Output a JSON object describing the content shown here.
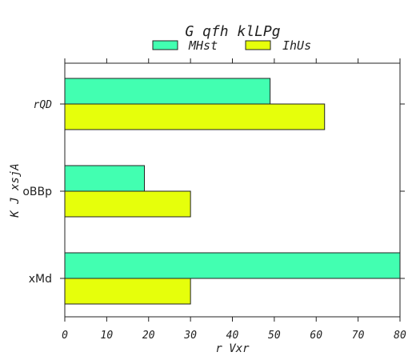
{
  "chart_data": {
    "type": "bar",
    "orientation": "horizontal",
    "title": "G  qfh   klLPg",
    "xlabel": "r Vxr",
    "ylabel": "K J xsjA",
    "categories": [
      "rQD",
      "oBBp",
      "xMd"
    ],
    "series": [
      {
        "name": "MHst",
        "color": "#42ffb1",
        "values": [
          49,
          19,
          80
        ]
      },
      {
        "name": "IhUs",
        "color": "#e6ff0b",
        "values": [
          62,
          30,
          30
        ]
      }
    ],
    "xlim": [
      0,
      80
    ],
    "xticks": [
      0,
      10,
      20,
      30,
      40,
      50,
      60,
      70,
      80
    ],
    "grid": false,
    "legend_position": "top-center"
  }
}
